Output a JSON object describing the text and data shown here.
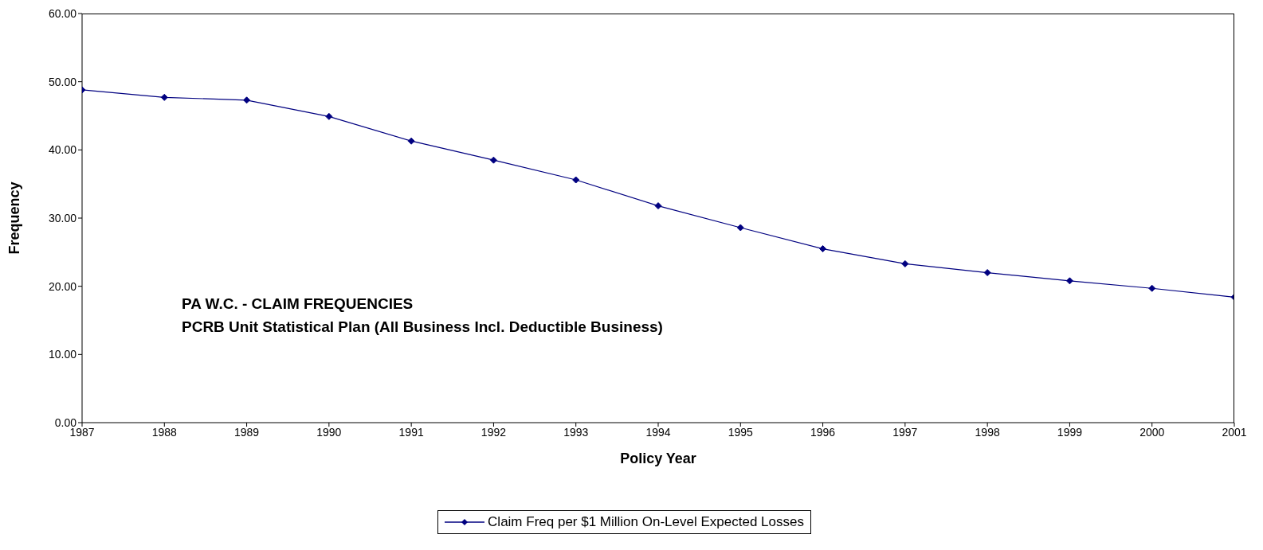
{
  "chart_data": {
    "type": "line",
    "title": "PA W.C. - CLAIM FREQUENCIES",
    "subtitle": "PCRB Unit Statistical Plan (All Business Incl. Deductible Business)",
    "xlabel": "Policy Year",
    "ylabel": "Frequency",
    "x": [
      1987,
      1988,
      1989,
      1990,
      1991,
      1992,
      1993,
      1994,
      1995,
      1996,
      1997,
      1998,
      1999,
      2000,
      2001
    ],
    "series": [
      {
        "name": "Claim Freq per $1 Million On-Level Expected Losses",
        "color": "#000080",
        "values": [
          48.8,
          47.7,
          47.3,
          44.9,
          41.3,
          38.5,
          35.6,
          31.8,
          28.6,
          25.5,
          23.3,
          22.0,
          20.8,
          19.7,
          18.4
        ]
      }
    ],
    "xlim": [
      1987,
      2001
    ],
    "xticks": [
      1987,
      1988,
      1989,
      1990,
      1991,
      1992,
      1993,
      1994,
      1995,
      1996,
      1997,
      1998,
      1999,
      2000,
      2001
    ],
    "ylim": [
      0,
      60
    ],
    "yticks": [
      {
        "value": 0,
        "label": "0.00"
      },
      {
        "value": 10,
        "label": "10.00"
      },
      {
        "value": 20,
        "label": "20.00"
      },
      {
        "value": 30,
        "label": "30.00"
      },
      {
        "value": 40,
        "label": "40.00"
      },
      {
        "value": 50,
        "label": "50.00"
      },
      {
        "value": 60,
        "label": "60.00"
      }
    ],
    "legend": "bottom",
    "marker": "diamond",
    "line_style": "solid"
  }
}
